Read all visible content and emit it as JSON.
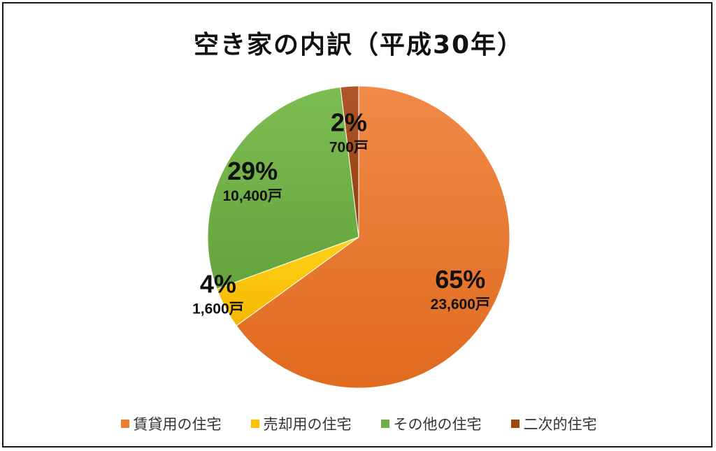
{
  "chart_data": {
    "type": "pie",
    "title": "空き家の内訳（平成30年）",
    "slices": [
      {
        "name": "賃貸用の住宅",
        "value": 23600,
        "percent_label": "65%",
        "count_label": "23,600戸",
        "color": "#ED7D31"
      },
      {
        "name": "売却用の住宅",
        "value": 1600,
        "percent_label": "4%",
        "count_label": "1,600戸",
        "color": "#FFC000"
      },
      {
        "name": "その他の住宅",
        "value": 10400,
        "percent_label": "29%",
        "count_label": "10,400戸",
        "color": "#70AD47"
      },
      {
        "name": "二次的住宅",
        "value": 700,
        "percent_label": "2%",
        "count_label": "700戸",
        "color": "#9E480E"
      }
    ],
    "legend_position": "bottom"
  }
}
